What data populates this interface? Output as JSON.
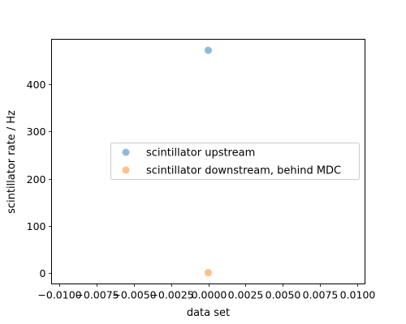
{
  "chart_data": {
    "type": "scatter",
    "title": "",
    "xlabel": "data set",
    "ylabel": "scintillator rate / Hz",
    "xlim": [
      -0.0105,
      0.0105
    ],
    "ylim": [
      -23.6,
      496
    ],
    "x_ticks": [
      -0.01,
      -0.0075,
      -0.005,
      -0.0025,
      0.0,
      0.0025,
      0.005,
      0.0075,
      0.01
    ],
    "x_tick_labels": [
      "−0.0100",
      "−0.0075",
      "−0.0050",
      "−0.0025",
      "0.0000",
      "0.0025",
      "0.0050",
      "0.0075",
      "0.0100"
    ],
    "y_ticks": [
      0,
      100,
      200,
      300,
      400
    ],
    "y_tick_labels": [
      "0",
      "100",
      "200",
      "300",
      "400"
    ],
    "grid": false,
    "legend_position": "center-right",
    "series": [
      {
        "name": "scintillator upstream",
        "color": "#1f77b4",
        "points": [
          {
            "x": 0.0,
            "y": 472.5
          }
        ]
      },
      {
        "name": "scintillator downstream, behind MDC",
        "color": "#ff7f0e",
        "points": [
          {
            "x": 0.0,
            "y": 0.2
          }
        ]
      }
    ]
  }
}
